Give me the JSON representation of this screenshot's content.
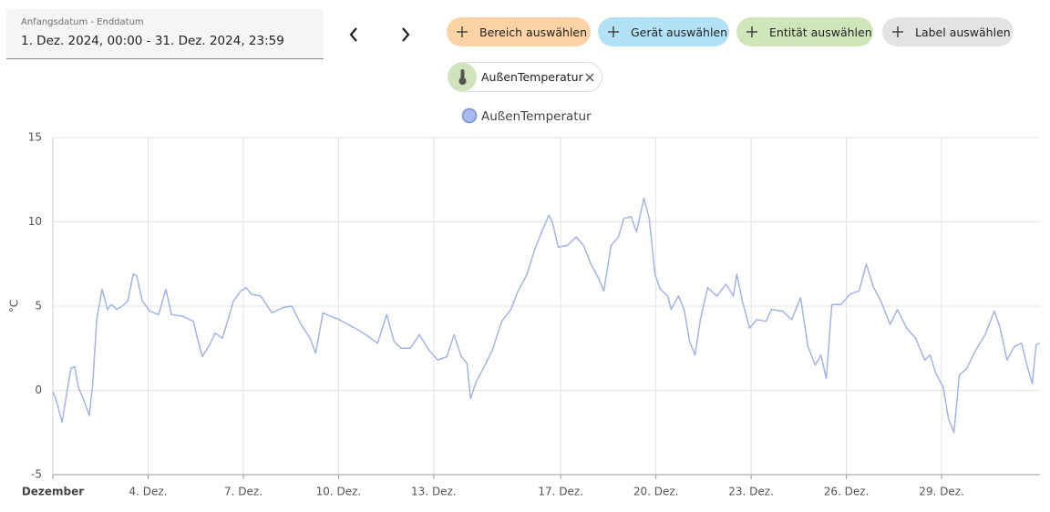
{
  "date_picker": {
    "label": "Anfangsdatum - Enddatum",
    "value": "1. Dez. 2024, 00:00 - 31. Dez. 2024, 23:59"
  },
  "target_chips": [
    "Bereich auswählen",
    "Gerät auswählen",
    "Entität auswählen",
    "Label auswählen"
  ],
  "selected_entity": "AußenTemperatur",
  "chart_data": {
    "type": "line",
    "y_label": "°C",
    "x": [
      1.0,
      1.11,
      1.29,
      1.4,
      1.57,
      1.69,
      1.8,
      1.98,
      2.15,
      2.26,
      2.38,
      2.55,
      2.72,
      2.84,
      3.01,
      3.18,
      3.36,
      3.53,
      3.64,
      3.82,
      4.05,
      4.33,
      4.56,
      4.74,
      5.08,
      5.43,
      5.54,
      5.71,
      5.94,
      6.11,
      6.34,
      6.52,
      6.69,
      6.92,
      7.09,
      7.26,
      7.55,
      7.9,
      8.24,
      8.53,
      8.82,
      9.1,
      9.28,
      9.51,
      9.74,
      10.02,
      10.31,
      10.6,
      10.94,
      11.23,
      11.52,
      11.75,
      11.98,
      12.26,
      12.55,
      12.84,
      13.13,
      13.41,
      13.64,
      13.87,
      14.05,
      14.16,
      14.33,
      14.56,
      14.85,
      15.14,
      15.43,
      15.66,
      15.94,
      16.17,
      16.4,
      16.63,
      16.75,
      16.92,
      17.21,
      17.49,
      17.72,
      17.95,
      18.18,
      18.36,
      18.59,
      18.82,
      18.99,
      19.22,
      19.39,
      19.62,
      19.79,
      19.97,
      20.14,
      20.37,
      20.48,
      20.71,
      20.89,
      21.06,
      21.23,
      21.4,
      21.63,
      21.92,
      22.21,
      22.44,
      22.55,
      22.72,
      22.95,
      23.18,
      23.47,
      23.64,
      23.99,
      24.28,
      24.56,
      24.79,
      25.02,
      25.2,
      25.37,
      25.54,
      25.83,
      26.11,
      26.4,
      26.63,
      26.86,
      27.09,
      27.38,
      27.61,
      27.9,
      28.18,
      28.47,
      28.64,
      28.82,
      29.05,
      29.22,
      29.39,
      29.56,
      29.79,
      30.08,
      30.37,
      30.66,
      30.83,
      31.06,
      31.29,
      31.52,
      31.69,
      31.86,
      31.98,
      32.09
    ],
    "series": [
      {
        "name": "AußenTemperatur",
        "color": "#a3b4e6",
        "values": [
          -0.1,
          -0.6,
          -1.9,
          -0.6,
          1.3,
          1.4,
          0.2,
          -0.6,
          -1.5,
          0.5,
          4.2,
          6.0,
          4.8,
          5.1,
          4.8,
          5.0,
          5.3,
          6.9,
          6.8,
          5.3,
          4.7,
          4.5,
          6.0,
          4.5,
          4.4,
          4.1,
          3.2,
          2.0,
          2.7,
          3.4,
          3.1,
          4.2,
          5.3,
          5.9,
          6.1,
          5.7,
          5.6,
          4.6,
          4.9,
          5.0,
          3.9,
          3.1,
          2.2,
          4.6,
          4.4,
          4.2,
          3.9,
          3.6,
          3.2,
          2.8,
          4.5,
          2.9,
          2.5,
          2.5,
          3.3,
          2.4,
          1.8,
          2.0,
          3.3,
          2.0,
          1.6,
          -0.5,
          0.5,
          1.3,
          2.4,
          4.1,
          4.8,
          5.9,
          6.9,
          8.3,
          9.4,
          10.4,
          9.9,
          8.5,
          8.6,
          9.1,
          8.6,
          7.5,
          6.7,
          5.9,
          8.6,
          9.1,
          10.2,
          10.3,
          9.4,
          11.4,
          10.2,
          6.9,
          6.0,
          5.6,
          4.8,
          5.6,
          4.8,
          2.9,
          2.1,
          4.2,
          6.1,
          5.6,
          6.3,
          5.6,
          6.9,
          5.3,
          3.7,
          4.2,
          4.1,
          4.8,
          4.7,
          4.2,
          5.5,
          2.6,
          1.5,
          2.1,
          0.7,
          5.1,
          5.1,
          5.7,
          5.9,
          7.5,
          6.1,
          5.3,
          3.9,
          4.8,
          3.7,
          3.1,
          1.8,
          2.1,
          1.0,
          0.2,
          -1.7,
          -2.5,
          0.9,
          1.3,
          2.4,
          3.3,
          4.7,
          3.8,
          1.8,
          2.6,
          2.8,
          1.5,
          0.4,
          2.7,
          2.8
        ]
      }
    ],
    "xlim": [
      1,
      32.1
    ],
    "xticks": [
      {
        "value": 1,
        "label": "Dezember"
      },
      {
        "value": 4,
        "label": "4. Dez."
      },
      {
        "value": 7,
        "label": "7. Dez."
      },
      {
        "value": 10,
        "label": "10. Dez."
      },
      {
        "value": 13,
        "label": "13. Dez."
      },
      {
        "value": 17,
        "label": "17. Dez."
      },
      {
        "value": 20,
        "label": "20. Dez."
      },
      {
        "value": 23,
        "label": "23. Dez."
      },
      {
        "value": 26,
        "label": "26. Dez."
      },
      {
        "value": 29,
        "label": "29. Dez."
      }
    ],
    "ylim": [
      -5,
      15
    ],
    "yticks": [
      -5,
      0,
      5,
      10,
      15
    ],
    "grid": true
  }
}
